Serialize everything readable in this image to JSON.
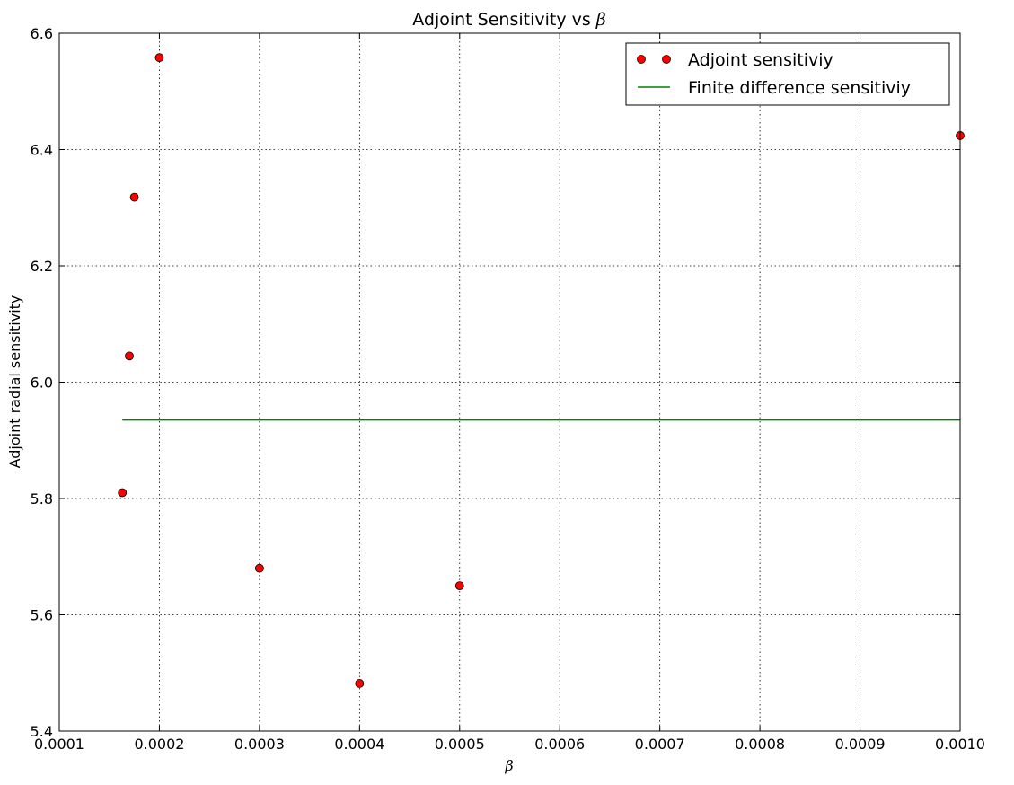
{
  "chart_data": {
    "type": "scatter",
    "title_prefix": "Adjoint Sensitivity vs ",
    "title_symbol": "β",
    "xlabel": "β",
    "ylabel": "Adjoint radial sensitivity",
    "xlim": [
      0.0001,
      0.001
    ],
    "ylim": [
      5.4,
      6.6
    ],
    "grid": true,
    "legend_position": "top-right",
    "x_ticks": [
      0.0001,
      0.0002,
      0.0003,
      0.0004,
      0.0005,
      0.0006,
      0.0007,
      0.0008,
      0.0009,
      0.001
    ],
    "x_tick_labels": [
      "0.0001",
      "0.0002",
      "0.0003",
      "0.0004",
      "0.0005",
      "0.0006",
      "0.0007",
      "0.0008",
      "0.0009",
      "0.0010"
    ],
    "y_ticks": [
      5.4,
      5.6,
      5.8,
      6.0,
      6.2,
      6.4,
      6.6
    ],
    "y_tick_labels": [
      "5.4",
      "5.6",
      "5.8",
      "6.0",
      "6.2",
      "6.4",
      "6.6"
    ],
    "series": [
      {
        "name": "Adjoint sensitiviy",
        "kind": "markers",
        "color": "#ff0000",
        "points": [
          {
            "x": 0.000163,
            "y": 5.81
          },
          {
            "x": 0.00017,
            "y": 6.045
          },
          {
            "x": 0.000175,
            "y": 6.318
          },
          {
            "x": 0.0002,
            "y": 6.558
          },
          {
            "x": 0.0003,
            "y": 5.68
          },
          {
            "x": 0.0004,
            "y": 5.482
          },
          {
            "x": 0.0005,
            "y": 5.65
          },
          {
            "x": 0.001,
            "y": 6.424
          }
        ]
      },
      {
        "name": "Finite difference sensitiviy",
        "kind": "line",
        "color": "#008000",
        "points": [
          {
            "x": 0.000163,
            "y": 5.935
          },
          {
            "x": 0.001,
            "y": 5.935
          }
        ]
      }
    ]
  }
}
